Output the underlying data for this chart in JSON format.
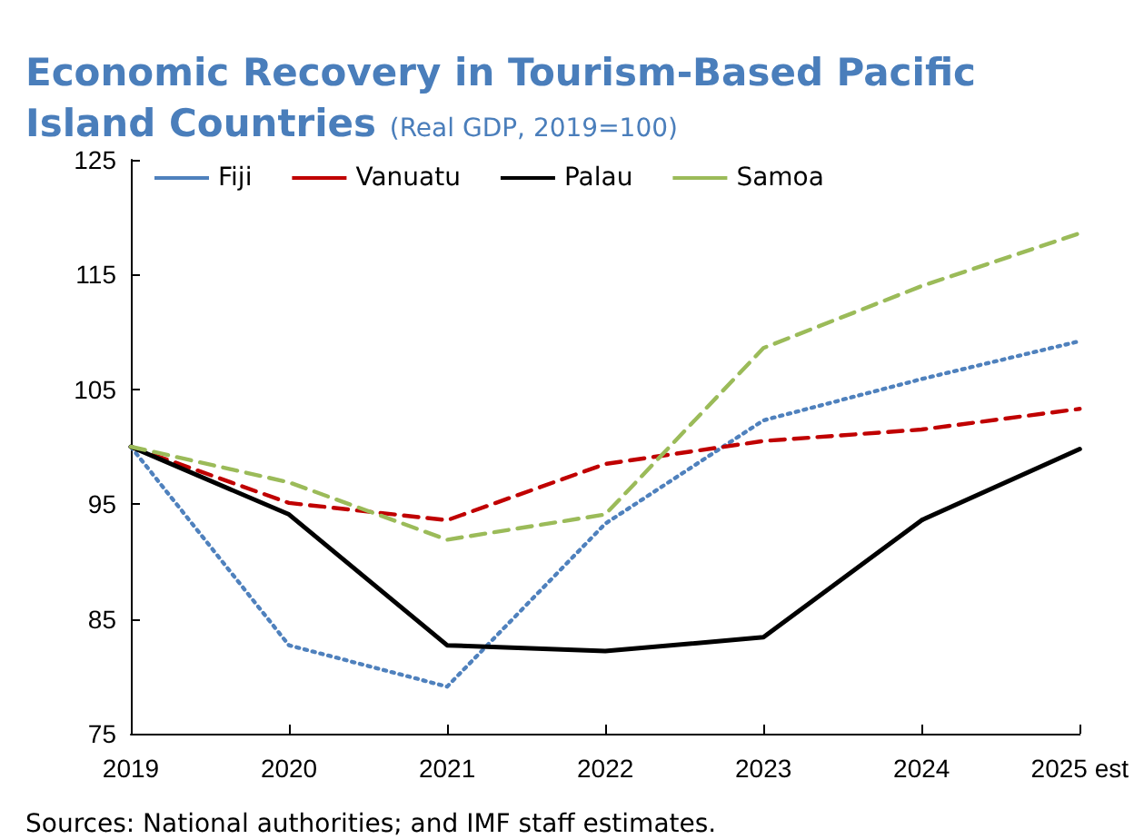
{
  "chart_data": {
    "type": "line",
    "title": "Economic Recovery in Tourism-Based Pacific Island Countries",
    "subtitle": "(Real GDP, 2019=100)",
    "categories": [
      "2019",
      "2020",
      "2021",
      "2022",
      "2023",
      "2024",
      "2025 est"
    ],
    "series": [
      {
        "name": "Fiji",
        "color": "#4f81bd",
        "line_style": "dotted",
        "values": [
          100,
          82.7,
          79.1,
          93.3,
          102.3,
          105.9,
          109.2
        ]
      },
      {
        "name": "Vanuatu",
        "color": "#c00000",
        "line_style": "dashed",
        "values": [
          100,
          95.1,
          93.6,
          98.5,
          100.5,
          101.5,
          103.3
        ]
      },
      {
        "name": "Palau",
        "color": "#000000",
        "line_style": "solid",
        "values": [
          100,
          94.1,
          82.7,
          82.2,
          83.4,
          93.6,
          99.8
        ]
      },
      {
        "name": "Samoa",
        "color": "#9bbb59",
        "line_style": "dashed",
        "values": [
          100,
          96.9,
          91.9,
          94.1,
          108.6,
          114,
          118.6
        ]
      }
    ],
    "ylim": [
      75,
      125
    ],
    "yticks": [
      75,
      85,
      95,
      105,
      115,
      125
    ],
    "grid": false,
    "legend": "top left",
    "marker": "none",
    "annotations": [
      "Sources: National authorities; and IMF staff estimates."
    ]
  }
}
